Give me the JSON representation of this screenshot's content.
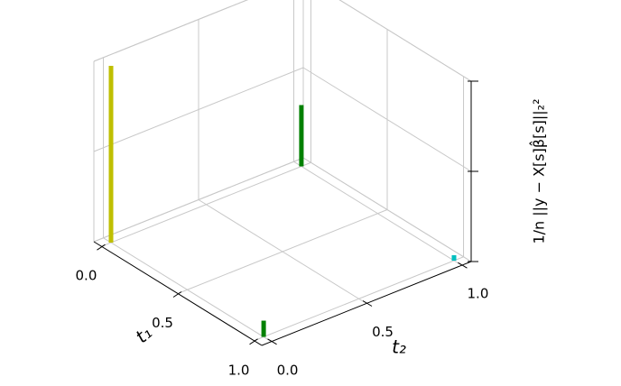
{
  "chart_data": {
    "type": "bar3d",
    "xlabel": "t₁",
    "ylabel": "t₂",
    "zlabel": "1/n ||y − X[s]β̂[s]||₂²",
    "x": [
      0,
      1,
      0,
      1
    ],
    "y": [
      0,
      0,
      1,
      1
    ],
    "values": [
      0.98,
      0.09,
      0.34,
      0.03
    ],
    "colors": [
      "#bfbf00",
      "#008000",
      "#008000",
      "#00bfbf"
    ],
    "xlim": [
      -0.05,
      1.05
    ],
    "ylim": [
      -0.05,
      1.05
    ],
    "zlim": [
      0,
      1
    ],
    "xticks": [
      {
        "value": 0,
        "label": "0.0"
      },
      0.5,
      {
        "value": 1,
        "label": "1.0"
      }
    ],
    "yticks": [
      {
        "value": 0,
        "label": "0.0"
      },
      0.5,
      {
        "value": 1,
        "label": "1.0"
      }
    ],
    "zticks": [
      0,
      0.5,
      1
    ],
    "grid": true
  }
}
